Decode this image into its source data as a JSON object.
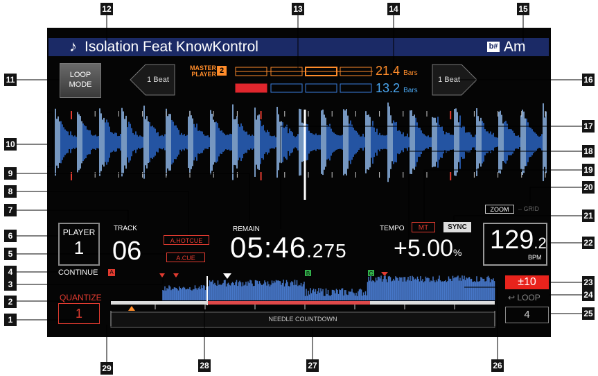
{
  "track": {
    "note_icon": "music-note-icon",
    "note": "♪",
    "title": "Isolation Feat KnowKontrol",
    "key_icon": "key-icon",
    "key_icon_text": "b#",
    "key": "Am"
  },
  "loop_mode_label": "LOOP\nMODE",
  "beat_jump": {
    "left": "1 Beat",
    "right": "1 Beat"
  },
  "master": {
    "label_line1": "MASTER",
    "label_line2": "PLAYER",
    "player": "2"
  },
  "bars": {
    "master_value": "21.4",
    "own_value": "13.2",
    "unit": "Bars"
  },
  "player": {
    "label": "PLAYER",
    "number": "1"
  },
  "track_label": "TRACK",
  "track_number": "06",
  "hotcue_label": "A.HOTCUE",
  "cue_label": "A.CUE",
  "remain_label": "REMAIN",
  "time": {
    "main": "05:46",
    "fraction": ".275"
  },
  "tempo": {
    "label": "TEMPO",
    "value": "+5.00",
    "unit": "%"
  },
  "mt_label": "MT",
  "sync_label": "SYNC",
  "zoom_label": "ZOOM",
  "grid_label": "– GRID",
  "bpm": {
    "value": "129",
    "decimal": ".2",
    "unit": "BPM"
  },
  "continue": {
    "label": "CONTINUE",
    "marker": "A"
  },
  "quantize": {
    "label": "QUANTIZE",
    "value": "1"
  },
  "tempo_range": "±10",
  "loop_label": "LOOP",
  "beat_loop_value": "4",
  "needle_label": "NEEDLE COUNTDOWN",
  "playback_progress": 0.44,
  "cue_markers": {
    "memory_b": "B",
    "memory_c": "C"
  },
  "callouts": [
    "1",
    "2",
    "3",
    "4",
    "5",
    "6",
    "7",
    "8",
    "9",
    "10",
    "11",
    "12",
    "13",
    "14",
    "15",
    "16",
    "17",
    "18",
    "19",
    "20",
    "21",
    "22",
    "23",
    "24",
    "25",
    "26",
    "27",
    "28",
    "29"
  ],
  "colors": {
    "accent_orange": "#ff8c2a",
    "cue_red": "#e23b30",
    "wave_blue": "#3a7fe0",
    "sync_bg": "#dddddd",
    "title_bar": "#1b2a66"
  }
}
